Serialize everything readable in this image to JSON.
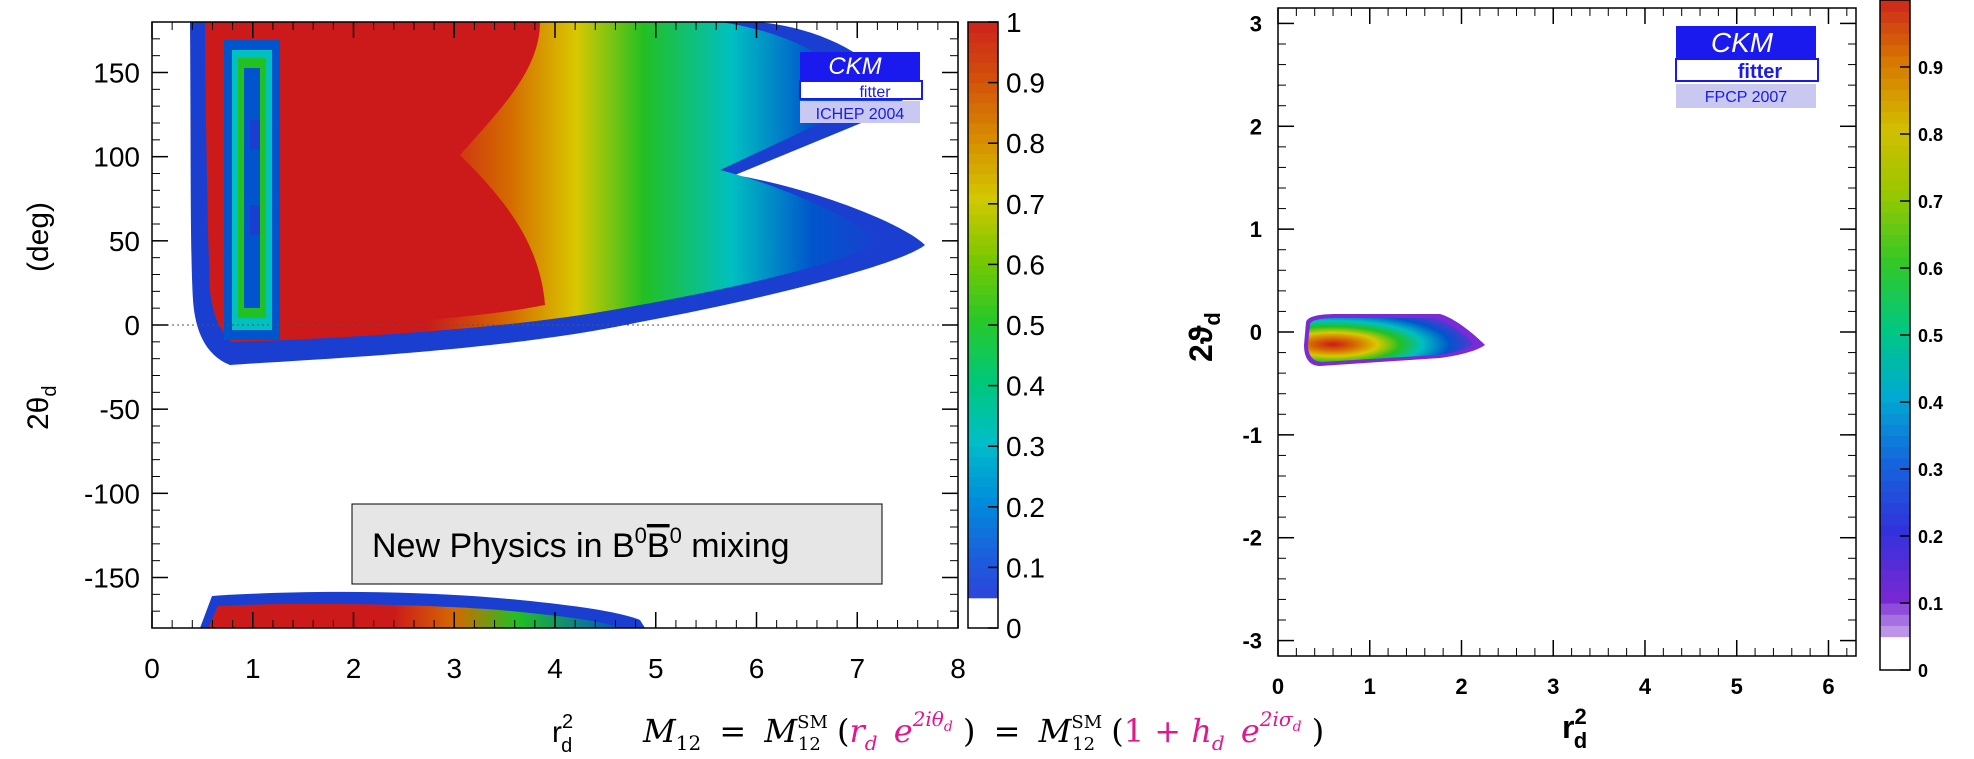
{
  "chart_data": [
    {
      "type": "heatmap",
      "title": "",
      "xlabel": "r",
      "xlabel_sup": "2",
      "xlabel_sub": "d",
      "ylabel": "2θ",
      "ylabel_sub": "d",
      "ylabel_unit": "(deg)",
      "xlim": [
        0,
        8
      ],
      "ylim": [
        -180,
        180
      ],
      "x_ticks": [
        "0",
        "1",
        "2",
        "3",
        "4",
        "5",
        "6",
        "7",
        "8"
      ],
      "y_ticks": [
        "-150",
        "-100",
        "-50",
        "0",
        "50",
        "100",
        "150"
      ],
      "colorbar_ticks": [
        "0",
        "0.1",
        "0.2",
        "0.3",
        "0.4",
        "0.5",
        "0.6",
        "0.7",
        "0.8",
        "0.9",
        "1"
      ],
      "colorbar_range": [
        0,
        1
      ],
      "logo": {
        "line1": "CKM",
        "line2": "fitter",
        "line3": "ICHEP 2004"
      },
      "annotation": {
        "text": "New Physics in B",
        "sup1": "0",
        "mid": "B",
        "sup2": "0",
        "end": " mixing"
      },
      "reference_line": {
        "y": 0,
        "style": "dotted"
      },
      "regions": [
        {
          "name": "main lobe",
          "x_range": [
            0.2,
            7.6
          ],
          "y_range": [
            -20,
            180
          ],
          "peak_x_range": [
            0.3,
            3.0
          ]
        },
        {
          "name": "lower band",
          "x_range": [
            0.3,
            4.8
          ],
          "y_range": [
            -180,
            -160
          ]
        }
      ]
    },
    {
      "type": "heatmap",
      "title": "",
      "xlabel": "r",
      "xlabel_sup": "2",
      "xlabel_sub": "d",
      "ylabel": "2ϑ",
      "ylabel_sub": "d",
      "xlim": [
        0,
        6.3
      ],
      "ylim": [
        -3.15,
        3.15
      ],
      "x_ticks": [
        "0",
        "1",
        "2",
        "3",
        "4",
        "5",
        "6"
      ],
      "y_ticks": [
        "-3",
        "-2",
        "-1",
        "0",
        "1",
        "2",
        "3"
      ],
      "colorbar_ticks": [
        "0",
        "0.1",
        "0.2",
        "0.3",
        "0.4",
        "0.5",
        "0.6",
        "0.7",
        "0.8",
        "0.9"
      ],
      "colorbar_range": [
        0,
        1
      ],
      "logo": {
        "line1": "CKM",
        "line2": "fitter",
        "line3": "FPCP 2007"
      },
      "regions": [
        {
          "name": "allowed region",
          "x_range": [
            0.3,
            2.2
          ],
          "y_range": [
            -0.3,
            0.15
          ],
          "peak": [
            0.5,
            -0.2
          ]
        }
      ]
    }
  ],
  "equation": {
    "lhs": "M",
    "lhs_sub": "12",
    "sm": "M",
    "sm_sub": "12",
    "sm_sup": "SM",
    "term1": "r",
    "term1_sub": "d",
    "exp1_base": "e",
    "exp1": "2iθ",
    "exp1_sub": "d",
    "term2_one": "1 + ",
    "term2_h": "h",
    "term2_h_sub": "d",
    "exp2_base": "e",
    "exp2": "2iσ",
    "exp2_sub": "d",
    "accent_color": "#e0188c"
  },
  "colors": {
    "red": "#cc1a1a",
    "orange": "#d46a00",
    "yellow": "#d9c800",
    "green": "#22c022",
    "cyan": "#00c0c0",
    "blue": "#0055cc",
    "darkblue": "#1a1acc",
    "purple": "#7a2ad6"
  }
}
